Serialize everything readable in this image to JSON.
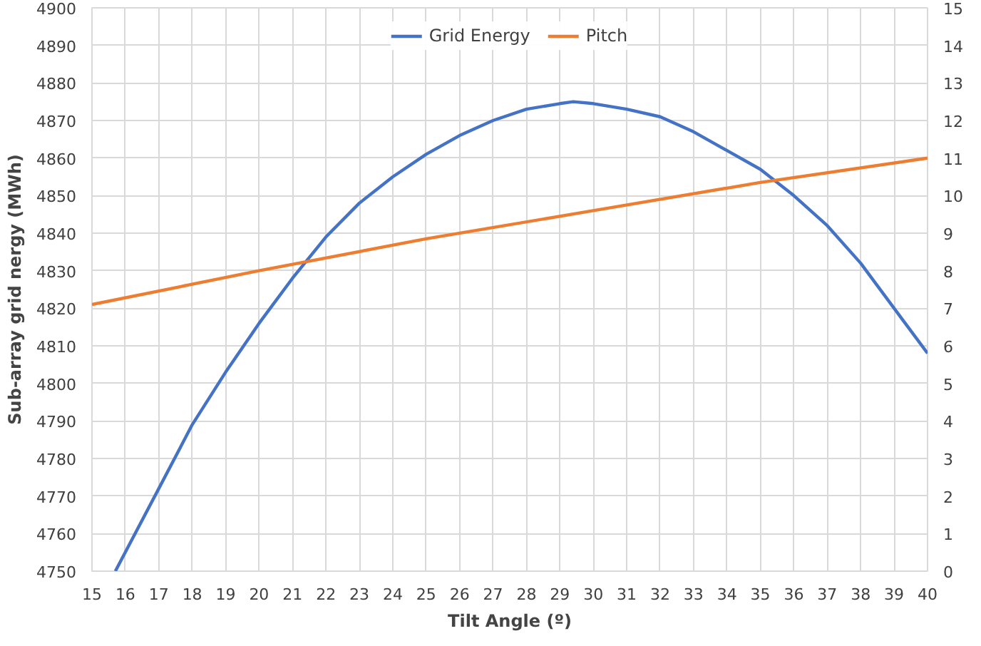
{
  "chart_data": {
    "type": "line",
    "xlabel": "Tilt Angle (º)",
    "ylabel": "Sub-array grid nergy (MWh)",
    "xlim": [
      15,
      40
    ],
    "xticks": [
      15,
      16,
      17,
      18,
      19,
      20,
      21,
      22,
      23,
      24,
      25,
      26,
      27,
      28,
      29,
      30,
      31,
      32,
      33,
      34,
      35,
      36,
      37,
      38,
      39,
      40
    ],
    "ylim": [
      4750,
      4900
    ],
    "yticks": [
      4750,
      4760,
      4770,
      4780,
      4790,
      4800,
      4810,
      4820,
      4830,
      4840,
      4850,
      4860,
      4870,
      4880,
      4890,
      4900
    ],
    "y2lim": [
      0,
      15
    ],
    "y2ticks": [
      0,
      1,
      2,
      3,
      4,
      5,
      6,
      7,
      8,
      9,
      10,
      11,
      12,
      13,
      14,
      15
    ],
    "grid": true,
    "legend": "top",
    "line_style": "solid",
    "marker": "none",
    "series": [
      {
        "name": "Grid Energy",
        "color": "#4472c4",
        "x": [
          15.7,
          17,
          18,
          19,
          20,
          21,
          22,
          23,
          24,
          25,
          26,
          27,
          28,
          29,
          29.4,
          30,
          31,
          32,
          33,
          34,
          35,
          36,
          37,
          38,
          39,
          40
        ],
        "values": [
          4750,
          4772,
          4789,
          4803,
          4816,
          4828,
          4839,
          4848,
          4855,
          4861,
          4866,
          4870,
          4873,
          4874.5,
          4875,
          4874.5,
          4873,
          4871,
          4867,
          4862,
          4857,
          4850,
          4842,
          4832,
          4820,
          4808
        ]
      },
      {
        "name": "Pitch",
        "color": "#ed7d31",
        "axis": "y2",
        "x": [
          15,
          20,
          25,
          30,
          35,
          40
        ],
        "values": [
          7.1,
          8.0,
          8.85,
          9.6,
          10.35,
          11.0
        ]
      }
    ]
  }
}
